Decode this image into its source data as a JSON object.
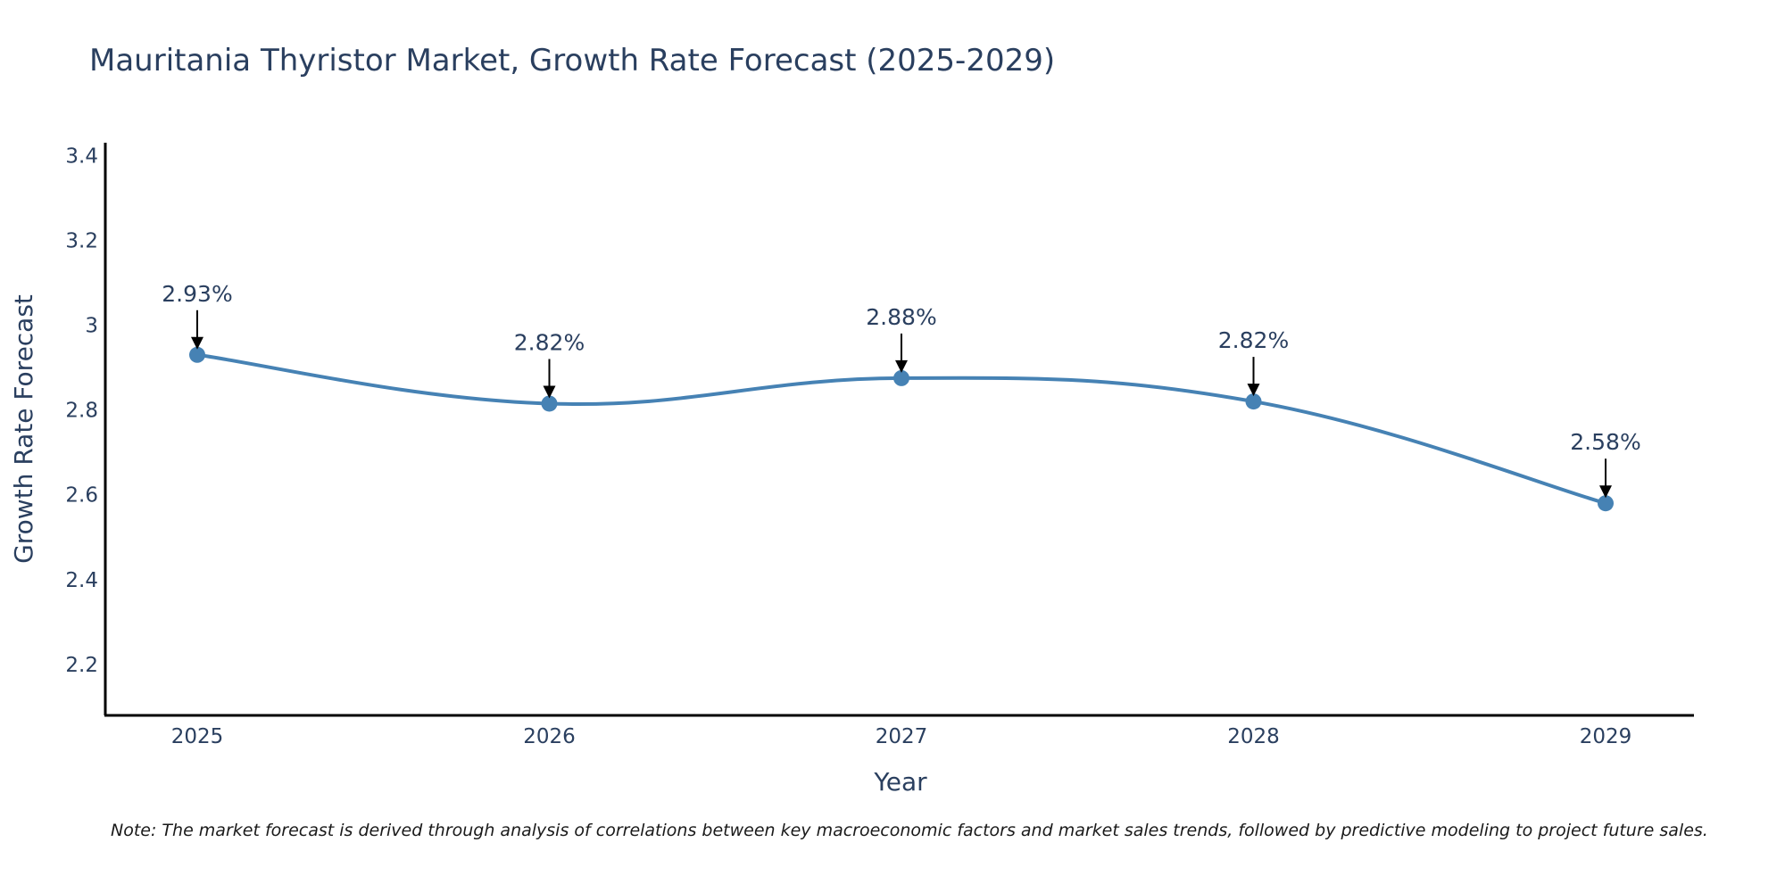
{
  "chart_data": {
    "type": "line",
    "title": "Mauritania Thyristor Market, Growth Rate Forecast (2025-2029)",
    "xlabel": "Year",
    "ylabel": "Growth Rate Forecast",
    "categories": [
      "2025",
      "2026",
      "2027",
      "2028",
      "2029"
    ],
    "values": [
      2.93,
      2.815,
      2.875,
      2.82,
      2.58
    ],
    "data_labels": [
      "2.93%",
      "2.82%",
      "2.88%",
      "2.82%",
      "2.58%"
    ],
    "y_ticks": [
      2.2,
      2.4,
      2.6,
      2.8,
      3,
      3.2,
      3.4
    ],
    "y_tick_labels": [
      "2.2",
      "2.4",
      "2.6",
      "2.8",
      "3",
      "3.2",
      "3.4"
    ],
    "ylim": [
      2.08,
      3.43
    ],
    "grid": false,
    "line_color": "#4682b4",
    "marker_color": "#4682b4",
    "arrow_color": "#000000"
  },
  "note": "Note: The market forecast is derived through analysis of correlations between key macroeconomic factors and market sales trends, followed by predictive modeling to project future sales."
}
